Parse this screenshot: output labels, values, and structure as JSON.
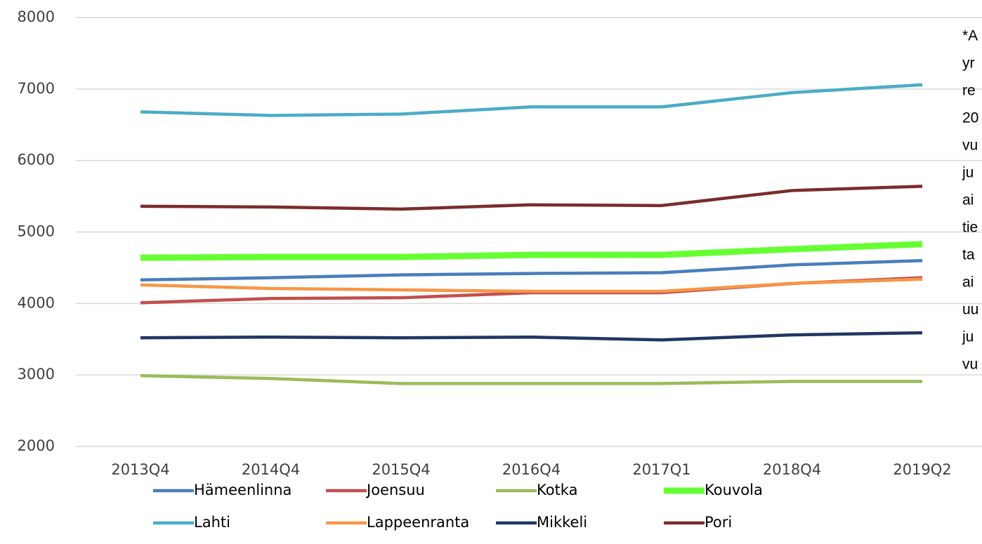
{
  "chart_data": {
    "type": "line",
    "categories": [
      "2013Q4",
      "2014Q4",
      "2015Q4",
      "2016Q4",
      "2017Q1",
      "2018Q4",
      "2019Q2"
    ],
    "ylim": [
      2000,
      8000
    ],
    "yticks": [
      2000,
      3000,
      4000,
      5000,
      6000,
      7000,
      8000
    ],
    "grid": true,
    "series": [
      {
        "name": "Hämeenlinna",
        "color": "#4a7ebb",
        "values": [
          4330,
          4360,
          4400,
          4420,
          4430,
          4540,
          4600
        ]
      },
      {
        "name": "Joensuu",
        "color": "#c0504d",
        "values": [
          4010,
          4070,
          4080,
          4150,
          4150,
          4280,
          4360
        ]
      },
      {
        "name": "Kotka",
        "color": "#9bbb59",
        "values": [
          2990,
          2950,
          2880,
          2880,
          2880,
          2910,
          2910
        ]
      },
      {
        "name": "Kouvola",
        "color": "#66ff33",
        "values": [
          4640,
          4650,
          4650,
          4680,
          4680,
          4760,
          4830
        ]
      },
      {
        "name": "Lahti",
        "color": "#4bacc6",
        "values": [
          6680,
          6630,
          6650,
          6750,
          6750,
          6950,
          7060
        ]
      },
      {
        "name": "Lappeenranta",
        "color": "#f79646",
        "values": [
          4260,
          4210,
          4190,
          4170,
          4170,
          4280,
          4340
        ]
      },
      {
        "name": "Mikkeli",
        "color": "#1f3864",
        "values": [
          3520,
          3530,
          3520,
          3530,
          3490,
          3560,
          3590
        ]
      },
      {
        "name": "Pori",
        "color": "#7b2c2c",
        "values": [
          5360,
          5350,
          5320,
          5380,
          5370,
          5580,
          5640
        ]
      }
    ],
    "annotation": [
      "*A",
      "yr",
      "re",
      "20",
      "vu",
      "ju",
      "ai",
      "tie",
      "ta",
      "ai",
      "uu",
      "ju",
      "vu"
    ]
  }
}
